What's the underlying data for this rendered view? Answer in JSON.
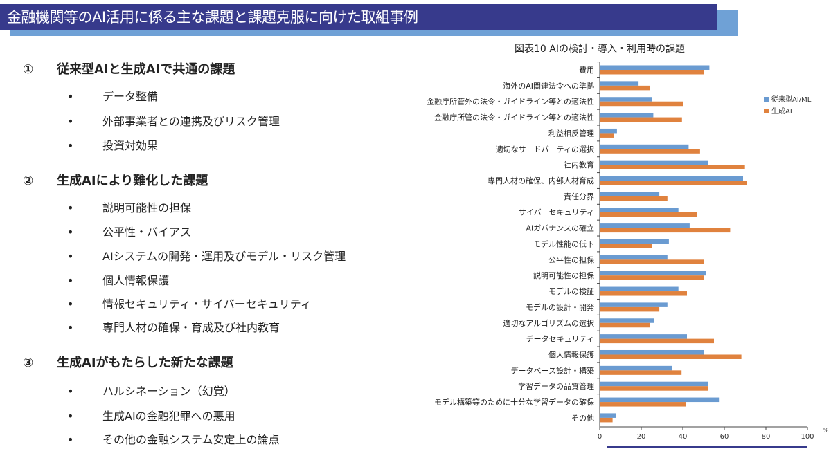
{
  "header": {
    "title": "金融機関等のAI活用に係る主な課題と課題克服に向けた取組事例"
  },
  "sections": [
    {
      "number": "①",
      "title": "従来型AIと生成AIで共通の課題",
      "items": [
        "データ整備",
        "外部事業者との連携及びリスク管理",
        "投資対効果"
      ]
    },
    {
      "number": "②",
      "title": "生成AIにより難化した課題",
      "items": [
        "説明可能性の担保",
        "公平性・バイアス",
        "AIシステムの開発・運用及びモデル・リスク管理",
        "個人情報保護",
        "情報セキュリティ・サイバーセキュリティ",
        "専門人材の確保・育成及び社内教育"
      ]
    },
    {
      "number": "③",
      "title": "生成AIがもたらした新たな課題",
      "items": [
        "ハルシネーション（幻覚）",
        "生成AIの金融犯罪への悪用",
        "その他の金融システム安定上の論点"
      ]
    }
  ],
  "bullet": "•",
  "chart_data": {
    "type": "bar",
    "orientation": "horizontal",
    "title": "図表10 AIの検討・導入・利用時の課題",
    "xlabel": "%",
    "xlim": [
      0,
      100
    ],
    "xticks": [
      0,
      20,
      40,
      60,
      80,
      100
    ],
    "legend_position": "right",
    "categories": [
      "費用",
      "海外のAI関連法令への準拠",
      "金融庁所管外の法令・ガイドライン等との適法性",
      "金融庁所管の法令・ガイドライン等との適法性",
      "利益相反管理",
      "適切なサードパーティの選択",
      "社内教育",
      "専門人材の確保、内部人材育成",
      "責任分界",
      "サイバーセキュリティ",
      "AIガバナンスの確立",
      "モデル性能の低下",
      "公平性の担保",
      "説明可能性の担保",
      "モデルの検証",
      "モデルの設計・開発",
      "適切なアルゴリズムの選択",
      "データセキュリティ",
      "個人情報保護",
      "データベース設計・構築",
      "学習データの品質管理",
      "モデル構築等のために十分な学習データの確保",
      "その他"
    ],
    "series": [
      {
        "name": "従来型AI/ML",
        "color": "#6A9BD1",
        "values": [
          52.8,
          18.7,
          25.0,
          25.8,
          8.3,
          42.8,
          52.2,
          69.0,
          28.7,
          37.9,
          43.3,
          33.3,
          32.6,
          51.2,
          37.9,
          32.6,
          26.2,
          42.0,
          50.3,
          34.9,
          52.0,
          57.4,
          7.9
        ]
      },
      {
        "name": "生成AI",
        "color": "#E0823E",
        "values": [
          50.3,
          24.1,
          40.3,
          39.6,
          6.9,
          48.3,
          69.9,
          70.7,
          32.6,
          46.9,
          62.8,
          25.3,
          50.1,
          50.1,
          42.0,
          28.7,
          24.1,
          55.0,
          68.2,
          39.4,
          52.3,
          41.4,
          6.2
        ]
      }
    ]
  }
}
